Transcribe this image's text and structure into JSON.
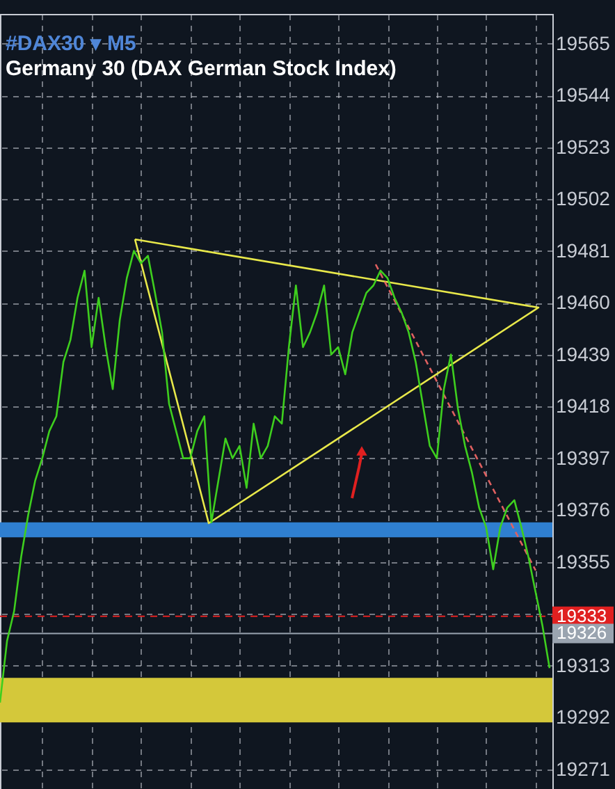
{
  "chart_data": {
    "type": "line",
    "title": "#DAX30 ▾ M5",
    "subtitle": "Germany 30 (DAX German Stock Index)",
    "categories": [
      null,
      null,
      null,
      null,
      null,
      null,
      null,
      null,
      null,
      null,
      null,
      null,
      null,
      null,
      null,
      null,
      null,
      null,
      null,
      null,
      null,
      null,
      null,
      null,
      null,
      null,
      null,
      null,
      null,
      null,
      null,
      null,
      null,
      null,
      null,
      null,
      null,
      null,
      null,
      null,
      null,
      null,
      null,
      null,
      null,
      null,
      null,
      null,
      null,
      null,
      null,
      null,
      null,
      null,
      null,
      null,
      null,
      null,
      null,
      null,
      null,
      null,
      null,
      null,
      null,
      null,
      null,
      null,
      null,
      null,
      null,
      null,
      null,
      null,
      null,
      null,
      null,
      null,
      null
    ],
    "ylim": [
      19263,
      19577
    ],
    "yticks": [
      19271,
      19292,
      19313,
      {
        "value": 19334,
        "label": null
      },
      19355,
      19376,
      19397,
      19418,
      19439,
      19460,
      19481,
      19502,
      19523,
      19544,
      19565
    ],
    "grid": true,
    "tick_labels": "y",
    "series": [
      {
        "color": "#3ecf1e",
        "values": [
          19298,
          19323,
          19335,
          19357,
          19374,
          19388,
          19397,
          19408,
          19414,
          19436,
          19445,
          19462,
          19473,
          19442,
          19462,
          19442,
          19425,
          19453,
          19470,
          19481,
          19476,
          19479,
          19464,
          19448,
          19419,
          19408,
          19397,
          19397,
          19408,
          19414,
          19371,
          19388,
          19405,
          19397,
          19402,
          19385,
          19411,
          19397,
          19402,
          19414,
          19411,
          19442,
          19467,
          19442,
          19448,
          19456,
          19467,
          19439,
          19442,
          19431,
          19448,
          19456,
          19464,
          19467,
          19473,
          19470,
          19462,
          19456,
          19448,
          19436,
          19419,
          19402,
          19397,
          19425,
          19439,
          19417,
          19402,
          19391,
          19377,
          19369,
          19352,
          19369,
          19377,
          19380,
          19369,
          19357,
          19343,
          19329,
          19312
        ]
      }
    ],
    "ref_lines": [
      {
        "axis": "y",
        "value": 19333,
        "label": "19333",
        "color": "#e02020",
        "line_style": "dashed"
      },
      {
        "axis": "y",
        "value": 19326,
        "label": "19326",
        "color": "#9aa4b0",
        "line_style": "solid"
      }
    ],
    "bands": [
      {
        "axis": "y",
        "from": 19290,
        "to": 19308,
        "color": "#d4c83a"
      },
      {
        "axis": "y",
        "from": 19365,
        "to": 19371,
        "color": "#2f7fd0"
      }
    ]
  }
}
